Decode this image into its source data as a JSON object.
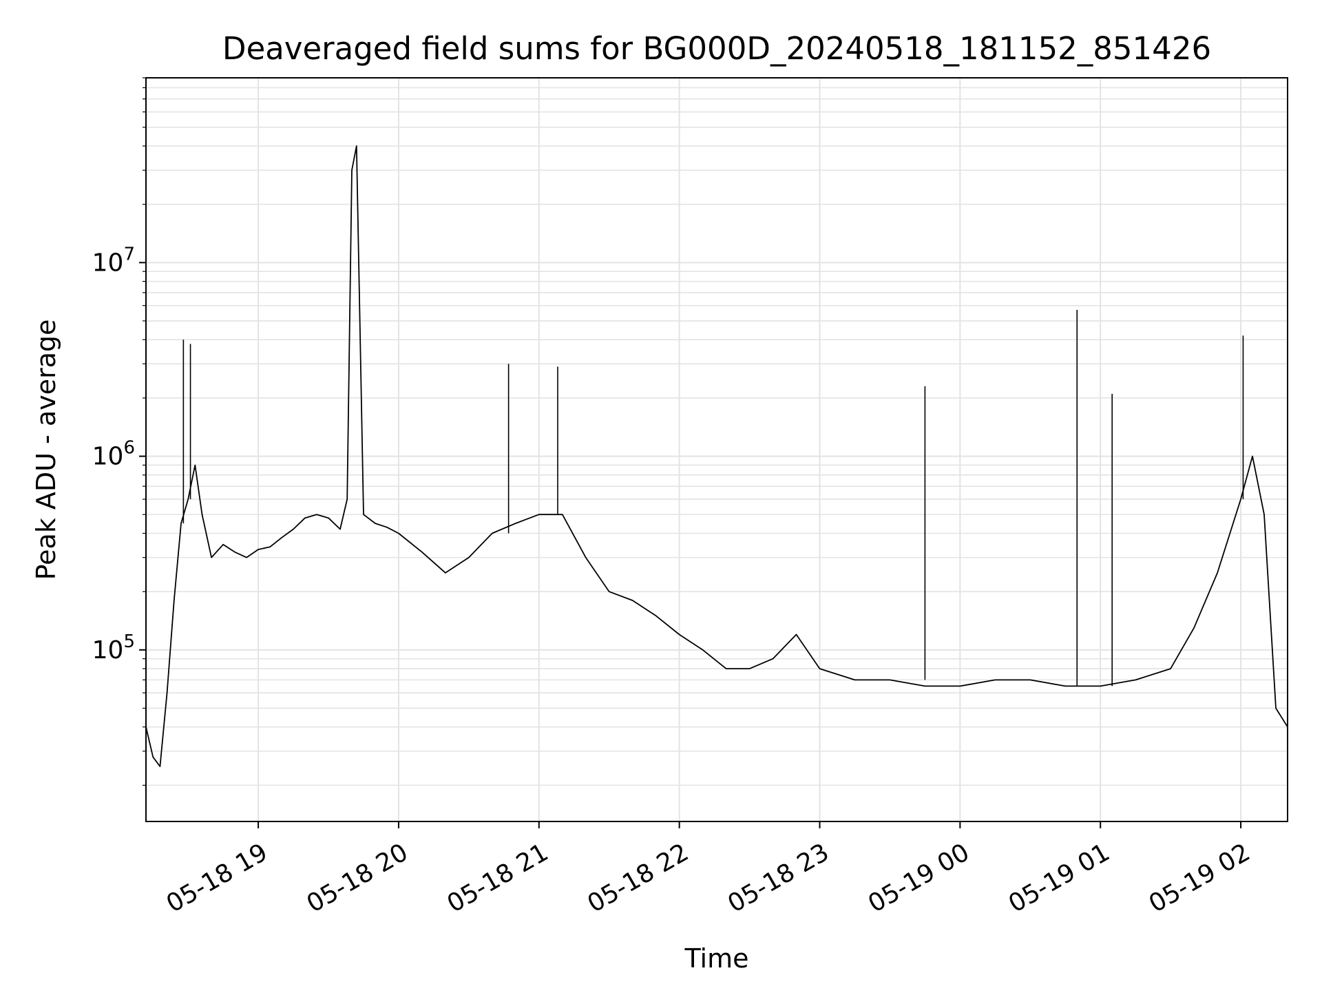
{
  "chart_data": {
    "type": "line",
    "title": "Deaveraged field sums for BG000D_20240518_181152_851426",
    "xlabel": "Time",
    "ylabel": "Peak ADU - average",
    "yscale": "log",
    "ylim": [
      13000,
      90000000
    ],
    "xlim": [
      "2024-05-18 18:12:00",
      "2024-05-19 02:20:00"
    ],
    "grid": true,
    "x_tick_labels": [
      "05-18 19",
      "05-18 20",
      "05-18 21",
      "05-18 22",
      "05-18 23",
      "05-19 00",
      "05-19 01",
      "05-19 02"
    ],
    "x_ticks": [
      "2024-05-18 19:00",
      "2024-05-18 20:00",
      "2024-05-18 21:00",
      "2024-05-18 22:00",
      "2024-05-18 23:00",
      "2024-05-19 00:00",
      "2024-05-19 01:00",
      "2024-05-19 02:00"
    ],
    "y_ticks": [
      100000,
      1000000,
      10000000
    ],
    "y_tick_labels": [
      {
        "base": "10",
        "exp": "5"
      },
      {
        "base": "10",
        "exp": "6"
      },
      {
        "base": "10",
        "exp": "7"
      }
    ],
    "series": [
      {
        "color": "#000000",
        "x": [
          "2024-05-18 18:12",
          "2024-05-18 18:15",
          "2024-05-18 18:18",
          "2024-05-18 18:21",
          "2024-05-18 18:24",
          "2024-05-18 18:27",
          "2024-05-18 18:30",
          "2024-05-18 18:33",
          "2024-05-18 18:36",
          "2024-05-18 18:40",
          "2024-05-18 18:45",
          "2024-05-18 18:50",
          "2024-05-18 18:55",
          "2024-05-18 19:00",
          "2024-05-18 19:05",
          "2024-05-18 19:10",
          "2024-05-18 19:15",
          "2024-05-18 19:20",
          "2024-05-18 19:25",
          "2024-05-18 19:30",
          "2024-05-18 19:35",
          "2024-05-18 19:38",
          "2024-05-18 19:40",
          "2024-05-18 19:42",
          "2024-05-18 19:45",
          "2024-05-18 19:50",
          "2024-05-18 19:55",
          "2024-05-18 20:00",
          "2024-05-18 20:10",
          "2024-05-18 20:20",
          "2024-05-18 20:30",
          "2024-05-18 20:40",
          "2024-05-18 20:50",
          "2024-05-18 21:00",
          "2024-05-18 21:10",
          "2024-05-18 21:20",
          "2024-05-18 21:30",
          "2024-05-18 21:40",
          "2024-05-18 21:50",
          "2024-05-18 22:00",
          "2024-05-18 22:10",
          "2024-05-18 22:20",
          "2024-05-18 22:30",
          "2024-05-18 22:40",
          "2024-05-18 22:50",
          "2024-05-18 23:00",
          "2024-05-18 23:15",
          "2024-05-18 23:30",
          "2024-05-18 23:45",
          "2024-05-19 00:00",
          "2024-05-19 00:15",
          "2024-05-19 00:30",
          "2024-05-19 00:45",
          "2024-05-19 01:00",
          "2024-05-19 01:15",
          "2024-05-19 01:30",
          "2024-05-19 01:40",
          "2024-05-19 01:50",
          "2024-05-19 02:00",
          "2024-05-19 02:05",
          "2024-05-19 02:10",
          "2024-05-19 02:15",
          "2024-05-19 02:20"
        ],
        "y": [
          40000,
          28000,
          25000,
          60000,
          180000,
          450000,
          600000,
          900000,
          500000,
          300000,
          350000,
          320000,
          300000,
          330000,
          340000,
          380000,
          420000,
          480000,
          500000,
          480000,
          420000,
          600000,
          30000000,
          40000000,
          500000,
          450000,
          430000,
          400000,
          320000,
          250000,
          300000,
          400000,
          450000,
          500000,
          500000,
          300000,
          200000,
          180000,
          150000,
          120000,
          100000,
          80000,
          80000,
          90000,
          120000,
          80000,
          70000,
          70000,
          65000,
          65000,
          70000,
          70000,
          65000,
          65000,
          70000,
          80000,
          130000,
          250000,
          600000,
          1000000,
          500000,
          50000,
          40000
        ],
        "spikes": [
          {
            "x": "2024-05-18 18:28",
            "y": 4000000
          },
          {
            "x": "2024-05-18 18:31",
            "y": 3800000
          },
          {
            "x": "2024-05-18 20:47",
            "y": 3000000
          },
          {
            "x": "2024-05-18 21:08",
            "y": 2900000
          },
          {
            "x": "2024-05-18 23:45",
            "y": 2300000
          },
          {
            "x": "2024-05-19 00:50",
            "y": 5700000
          },
          {
            "x": "2024-05-19 01:05",
            "y": 2100000
          },
          {
            "x": "2024-05-19 02:01",
            "y": 4200000
          }
        ]
      }
    ]
  }
}
